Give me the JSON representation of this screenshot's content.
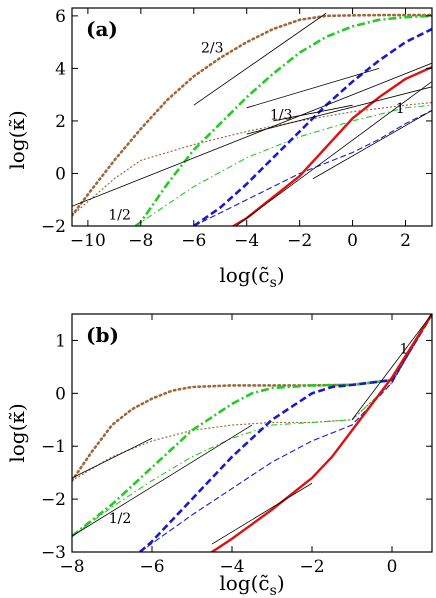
{
  "chart_data": [
    {
      "type": "line",
      "panel_label": "(a)",
      "xlabel": "log(c̃_s)",
      "ylabel": "log(κ̃)",
      "xlim": [
        -10.6,
        3
      ],
      "ylim": [
        -2,
        6.3
      ],
      "xticks": [
        -10,
        -8,
        -6,
        -4,
        -2,
        0,
        2
      ],
      "yticks": [
        -2,
        0,
        2,
        4,
        6
      ],
      "grid": false,
      "legend": "none",
      "annotations": [
        {
          "text": "2/3",
          "x": -5.3,
          "y": 4.6
        },
        {
          "text": "1/3",
          "x": -2.7,
          "y": 2.05
        },
        {
          "text": "1/2",
          "x": -8.8,
          "y": -1.75
        },
        {
          "text": "1",
          "x": 1.8,
          "y": 2.3
        }
      ],
      "series": [
        {
          "color": "#a0683a",
          "style": "thick-dotted",
          "x": [
            -10.6,
            -10,
            -9,
            -8,
            -7,
            -6,
            -5,
            -4,
            -3,
            -2,
            -1,
            0,
            1,
            2,
            3
          ],
          "y": [
            -1.6,
            -0.8,
            0.5,
            1.7,
            2.8,
            3.7,
            4.4,
            5.0,
            5.5,
            5.85,
            6.0,
            6.02,
            6.03,
            6.03,
            6.03
          ]
        },
        {
          "color": "#a0683a",
          "style": "thin-dotted",
          "x": [
            -10.6,
            -9,
            -8,
            -6,
            -4,
            -2,
            0,
            2,
            3
          ],
          "y": [
            -1.6,
            -0.2,
            0.5,
            1.1,
            1.6,
            2.0,
            2.35,
            2.6,
            2.7
          ]
        },
        {
          "color": "#22cc22",
          "style": "thick-dashdot",
          "x": [
            -8.2,
            -8,
            -7,
            -6,
            -5,
            -4,
            -3,
            -2,
            -1,
            0,
            1,
            2,
            3
          ],
          "y": [
            -2.0,
            -1.85,
            -0.4,
            0.9,
            1.9,
            2.9,
            3.8,
            4.6,
            5.2,
            5.6,
            5.85,
            5.95,
            6.0
          ]
        },
        {
          "color": "#22cc22",
          "style": "thin-dashdot",
          "x": [
            -8.2,
            -6,
            -4,
            -2,
            0,
            2,
            3
          ],
          "y": [
            -2.0,
            -0.5,
            0.6,
            1.4,
            2.0,
            2.5,
            2.6
          ]
        },
        {
          "color": "#1a1acc",
          "style": "thick-dashed",
          "x": [
            -6.0,
            -5,
            -4,
            -3,
            -2,
            -1,
            0,
            1,
            2,
            3
          ],
          "y": [
            -2.0,
            -1.3,
            -0.4,
            0.6,
            1.6,
            2.6,
            3.5,
            4.3,
            5.0,
            5.5
          ]
        },
        {
          "color": "#1a1acc",
          "style": "thin-dashed",
          "x": [
            -6.0,
            -4,
            -2,
            0,
            1,
            2,
            3
          ],
          "y": [
            -2.0,
            -1.0,
            0.0,
            0.8,
            1.3,
            1.9,
            2.4
          ]
        },
        {
          "color": "#e01010",
          "style": "solid",
          "x": [
            -4.5,
            -4,
            -3,
            -2,
            -1,
            0,
            1,
            2,
            3
          ],
          "y": [
            -2.0,
            -1.7,
            -0.9,
            -0.1,
            1.0,
            2.1,
            2.9,
            3.6,
            4.05
          ]
        },
        {
          "color": "#000000",
          "style": "thin-solid",
          "x": [
            -10.6,
            3
          ],
          "y": [
            -1.25,
            4.2
          ]
        },
        {
          "color": "#000000",
          "style": "thin-solid",
          "x": [
            -6,
            -1
          ],
          "y": [
            2.6,
            6.1
          ]
        },
        {
          "color": "#000000",
          "style": "thin-solid",
          "x": [
            -4,
            1
          ],
          "y": [
            2.5,
            4.0
          ]
        },
        {
          "color": "#000000",
          "style": "thin-solid",
          "x": [
            -4,
            3
          ],
          "y": [
            1.5,
            3.3
          ]
        },
        {
          "color": "#000000",
          "style": "thin-solid",
          "x": [
            -3,
            0
          ],
          "y": [
            2.0,
            2.6
          ]
        },
        {
          "color": "#000000",
          "style": "thin-solid",
          "x": [
            -4.4,
            3
          ],
          "y": [
            -2.0,
            3.5
          ]
        },
        {
          "color": "#000000",
          "style": "thin-solid",
          "x": [
            -1.5,
            3
          ],
          "y": [
            -0.2,
            2.4
          ]
        }
      ]
    },
    {
      "type": "line",
      "panel_label": "(b)",
      "xlabel": "log(c̃_s)",
      "ylabel": "log(κ̃)",
      "xlim": [
        -8,
        1
      ],
      "ylim": [
        -3,
        1.5
      ],
      "xticks": [
        -8,
        -6,
        -4,
        -2,
        0
      ],
      "yticks": [
        -3,
        -2,
        -1,
        0,
        1
      ],
      "grid": false,
      "legend": "none",
      "annotations": [
        {
          "text": "1/2",
          "x": -6.8,
          "y": -2.45
        },
        {
          "text": "1",
          "x": 0.3,
          "y": 0.75
        }
      ],
      "series": [
        {
          "color": "#a0683a",
          "style": "thick-dotted",
          "x": [
            -8,
            -7.5,
            -7,
            -6.5,
            -6,
            -5.5,
            -5,
            -4,
            -3,
            -2,
            -1,
            0,
            1
          ],
          "y": [
            -1.65,
            -1.1,
            -0.6,
            -0.3,
            -0.1,
            0.05,
            0.12,
            0.15,
            0.15,
            0.15,
            0.16,
            0.25,
            1.5
          ]
        },
        {
          "color": "#a0683a",
          "style": "thin-dotted",
          "x": [
            -8,
            -7,
            -6,
            -5,
            -4,
            -3,
            -2,
            -1,
            0,
            1
          ],
          "y": [
            -1.65,
            -1.2,
            -0.9,
            -0.7,
            -0.6,
            -0.55,
            -0.55,
            -0.5,
            0.2,
            1.5
          ]
        },
        {
          "color": "#22cc22",
          "style": "thick-dashdot",
          "x": [
            -8,
            -7,
            -6,
            -5,
            -4,
            -3.5,
            -3,
            -2,
            -1,
            0,
            1
          ],
          "y": [
            -2.7,
            -2.1,
            -1.4,
            -0.7,
            -0.2,
            0.0,
            0.1,
            0.15,
            0.16,
            0.25,
            1.5
          ]
        },
        {
          "color": "#22cc22",
          "style": "thin-dashdot",
          "x": [
            -8,
            -7,
            -6,
            -5,
            -4,
            -3,
            -2,
            -1,
            0,
            1
          ],
          "y": [
            -2.7,
            -2.15,
            -1.65,
            -1.2,
            -0.85,
            -0.6,
            -0.55,
            -0.5,
            0.2,
            1.5
          ]
        },
        {
          "color": "#1a1acc",
          "style": "thick-dashed",
          "x": [
            -6.3,
            -6,
            -5,
            -4,
            -3,
            -2,
            -1.5,
            -1,
            0,
            1
          ],
          "y": [
            -3.0,
            -2.8,
            -2.0,
            -1.2,
            -0.5,
            0.0,
            0.12,
            0.16,
            0.25,
            1.5
          ]
        },
        {
          "color": "#1a1acc",
          "style": "thin-dashed",
          "x": [
            -6.3,
            -5,
            -4,
            -3,
            -2,
            -1,
            0,
            1
          ],
          "y": [
            -3.0,
            -2.3,
            -1.8,
            -1.3,
            -0.9,
            -0.6,
            0.2,
            1.5
          ]
        },
        {
          "color": "#e01010",
          "style": "solid",
          "x": [
            -4.5,
            -4,
            -3,
            -2,
            -1.5,
            -1,
            -0.5,
            0,
            0.5,
            1
          ],
          "y": [
            -3.0,
            -2.75,
            -2.2,
            -1.6,
            -1.2,
            -0.7,
            -0.2,
            0.3,
            0.9,
            1.5
          ]
        },
        {
          "color": "#000000",
          "style": "thin-solid",
          "x": [
            -8,
            -6
          ],
          "y": [
            -1.6,
            -0.85
          ]
        },
        {
          "color": "#000000",
          "style": "thin-solid",
          "x": [
            -8,
            -3.5
          ],
          "y": [
            -2.7,
            -0.6
          ]
        },
        {
          "color": "#000000",
          "style": "thin-solid",
          "x": [
            -4.5,
            -2
          ],
          "y": [
            -2.85,
            -1.7
          ]
        },
        {
          "color": "#000000",
          "style": "thin-solid",
          "x": [
            -1,
            1
          ],
          "y": [
            -0.5,
            1.5
          ]
        }
      ]
    }
  ]
}
